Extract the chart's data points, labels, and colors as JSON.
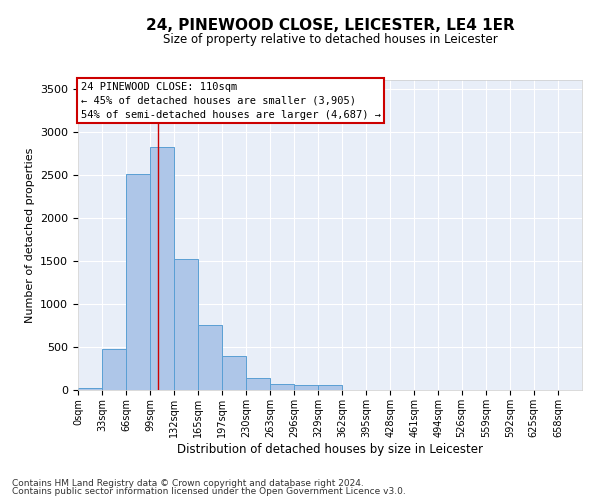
{
  "title": "24, PINEWOOD CLOSE, LEICESTER, LE4 1ER",
  "subtitle": "Size of property relative to detached houses in Leicester",
  "xlabel": "Distribution of detached houses by size in Leicester",
  "ylabel": "Number of detached properties",
  "bar_color": "#aec6e8",
  "bar_edge_color": "#5a9fd4",
  "bg_color": "#e8eef8",
  "grid_color": "#ffffff",
  "annotation_box_color": "#cc0000",
  "annotation_line1": "24 PINEWOOD CLOSE: 110sqm",
  "annotation_line2": "← 45% of detached houses are smaller (3,905)",
  "annotation_line3": "54% of semi-detached houses are larger (4,687) →",
  "vline_x": 110,
  "vline_color": "#cc0000",
  "categories": [
    "0sqm",
    "33sqm",
    "66sqm",
    "99sqm",
    "132sqm",
    "165sqm",
    "197sqm",
    "230sqm",
    "263sqm",
    "296sqm",
    "329sqm",
    "362sqm",
    "395sqm",
    "428sqm",
    "461sqm",
    "494sqm",
    "526sqm",
    "559sqm",
    "592sqm",
    "625sqm",
    "658sqm"
  ],
  "bin_edges": [
    0,
    33,
    66,
    99,
    132,
    165,
    197,
    230,
    263,
    296,
    329,
    362,
    395,
    428,
    461,
    494,
    526,
    559,
    592,
    625,
    658
  ],
  "bin_width": 33,
  "values": [
    20,
    480,
    2510,
    2820,
    1520,
    750,
    390,
    145,
    75,
    55,
    55,
    0,
    0,
    0,
    0,
    0,
    0,
    0,
    0,
    0,
    0
  ],
  "ylim": [
    0,
    3600
  ],
  "yticks": [
    0,
    500,
    1000,
    1500,
    2000,
    2500,
    3000,
    3500
  ],
  "footer1": "Contains HM Land Registry data © Crown copyright and database right 2024.",
  "footer2": "Contains public sector information licensed under the Open Government Licence v3.0."
}
